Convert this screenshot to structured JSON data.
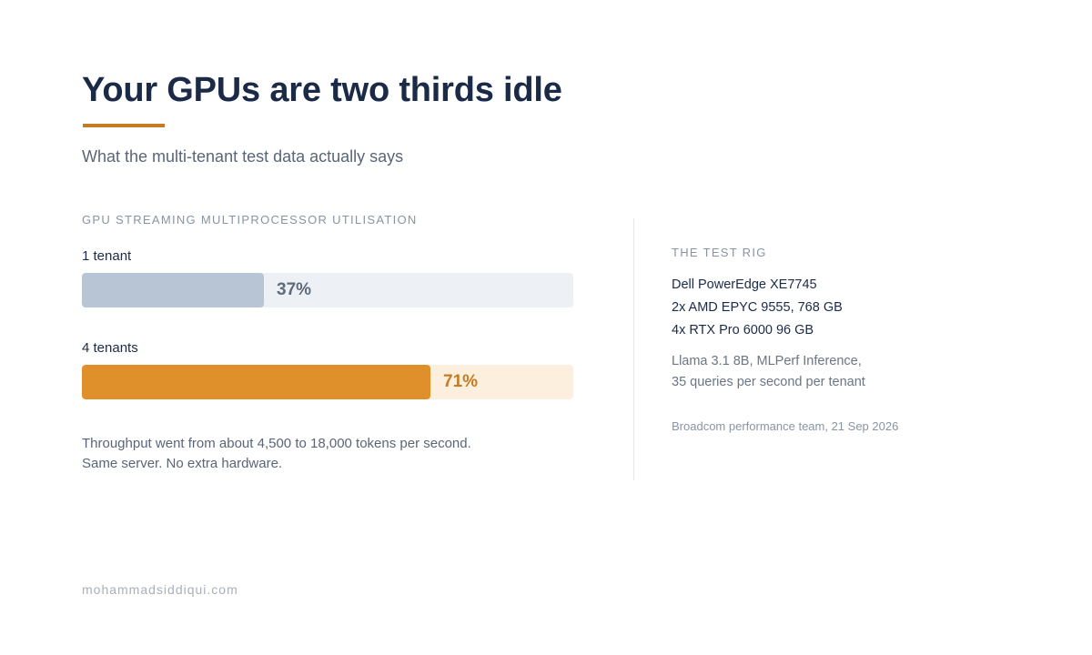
{
  "header": {
    "title": "Your GPUs are two thirds idle",
    "subtitle": "What the multi-tenant test data actually says"
  },
  "chart_data": {
    "type": "bar",
    "title": "GPU STREAMING MULTIPROCESSOR UTILISATION",
    "categories": [
      "1 tenant",
      "4 tenants"
    ],
    "values": [
      37,
      71
    ],
    "value_labels": [
      "37%",
      "71%"
    ],
    "unit": "%",
    "xlim": [
      0,
      100
    ],
    "colors": {
      "bars": [
        "#b8c5d5",
        "#e0902a"
      ],
      "tracks": [
        "#edf0f4",
        "#fcefdd"
      ],
      "value_text": [
        "#5f6b7c",
        "#c77b21"
      ]
    }
  },
  "notes": [
    "Throughput went from about 4,500 to 18,000 tokens per second.",
    "Same server. No extra hardware."
  ],
  "rig": {
    "heading": "THE TEST RIG",
    "hardware": [
      "Dell PowerEdge XE7745",
      "2x AMD EPYC 9555, 768 GB",
      "4x RTX Pro 6000 96 GB"
    ],
    "workload": [
      "Llama 3.1 8B, MLPerf Inference,",
      "35 queries per second per tenant"
    ],
    "source": "Broadcom performance team, 21 Sep 2026"
  },
  "footer": {
    "site": "mohammadsiddiqui.com"
  },
  "colors": {
    "accent": "#c77b21",
    "title": "#1b2a47"
  }
}
